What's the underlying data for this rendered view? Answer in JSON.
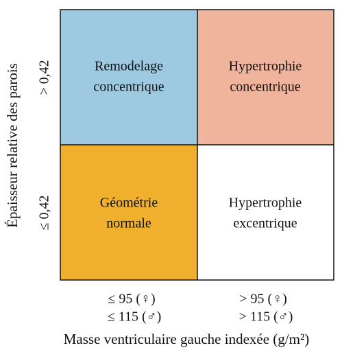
{
  "y_axis": {
    "title": "Épaisseur relative des parois",
    "levels": [
      "> 0,42",
      "≤ 0,42"
    ]
  },
  "x_axis": {
    "title": "Masse ventriculaire gauche indexée (g/m²)",
    "levels": [
      [
        "≤ 95 (♀)",
        "≤ 115 (♂)"
      ],
      [
        "> 95 (♀)",
        "> 115 (♂)"
      ]
    ]
  },
  "cells": [
    {
      "lines": [
        "Remodelage",
        "concentrique"
      ]
    },
    {
      "lines": [
        "Hypertrophie",
        "concentrique"
      ]
    },
    {
      "lines": [
        "Géométrie",
        "normale"
      ]
    },
    {
      "lines": [
        "Hypertrophie",
        "excentrique"
      ]
    }
  ]
}
